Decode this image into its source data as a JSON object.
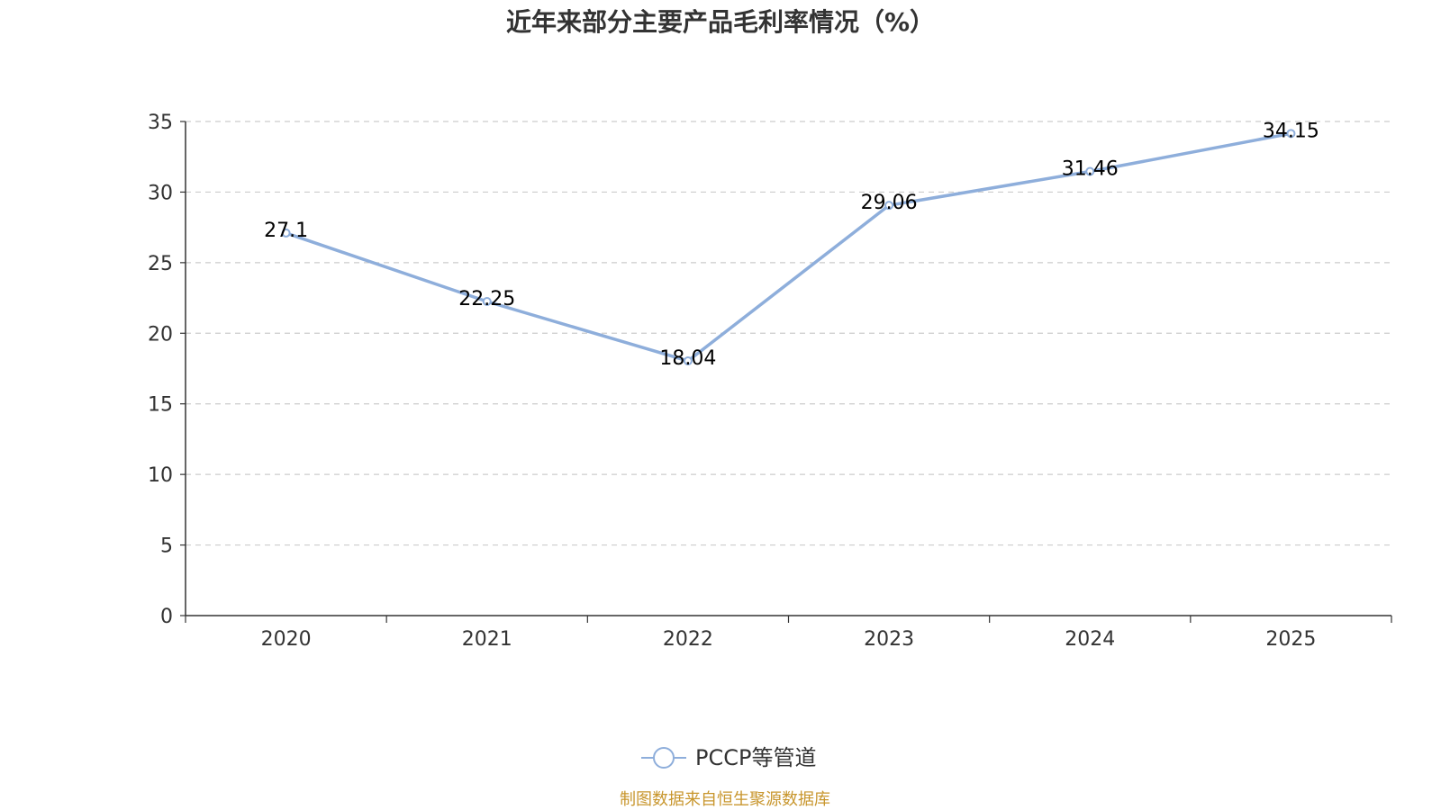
{
  "chart_data": {
    "type": "line",
    "title": "近年来部分主要产品毛利率情况（%）",
    "categories": [
      "2020",
      "2021",
      "2022",
      "2023",
      "2024",
      "2025"
    ],
    "series": [
      {
        "name": "PCCP等管道",
        "values": [
          27.1,
          22.25,
          18.04,
          29.06,
          31.46,
          34.15
        ],
        "labels": [
          "27.1",
          "22.25",
          "18.04",
          "29.06",
          "31.46",
          "34.15"
        ],
        "color": "#8eaedb"
      }
    ],
    "ylim": [
      0,
      35
    ],
    "yticks": [
      "0",
      "5",
      "10",
      "15",
      "20",
      "25",
      "30",
      "35"
    ],
    "xlabel": "",
    "ylabel": "",
    "grid": true,
    "legend_position": "bottom-center"
  },
  "source_note": "制图数据来自恒生聚源数据库",
  "colors": {
    "axis": "#333333",
    "grid": "#cccccc",
    "source": "#c8962d"
  }
}
